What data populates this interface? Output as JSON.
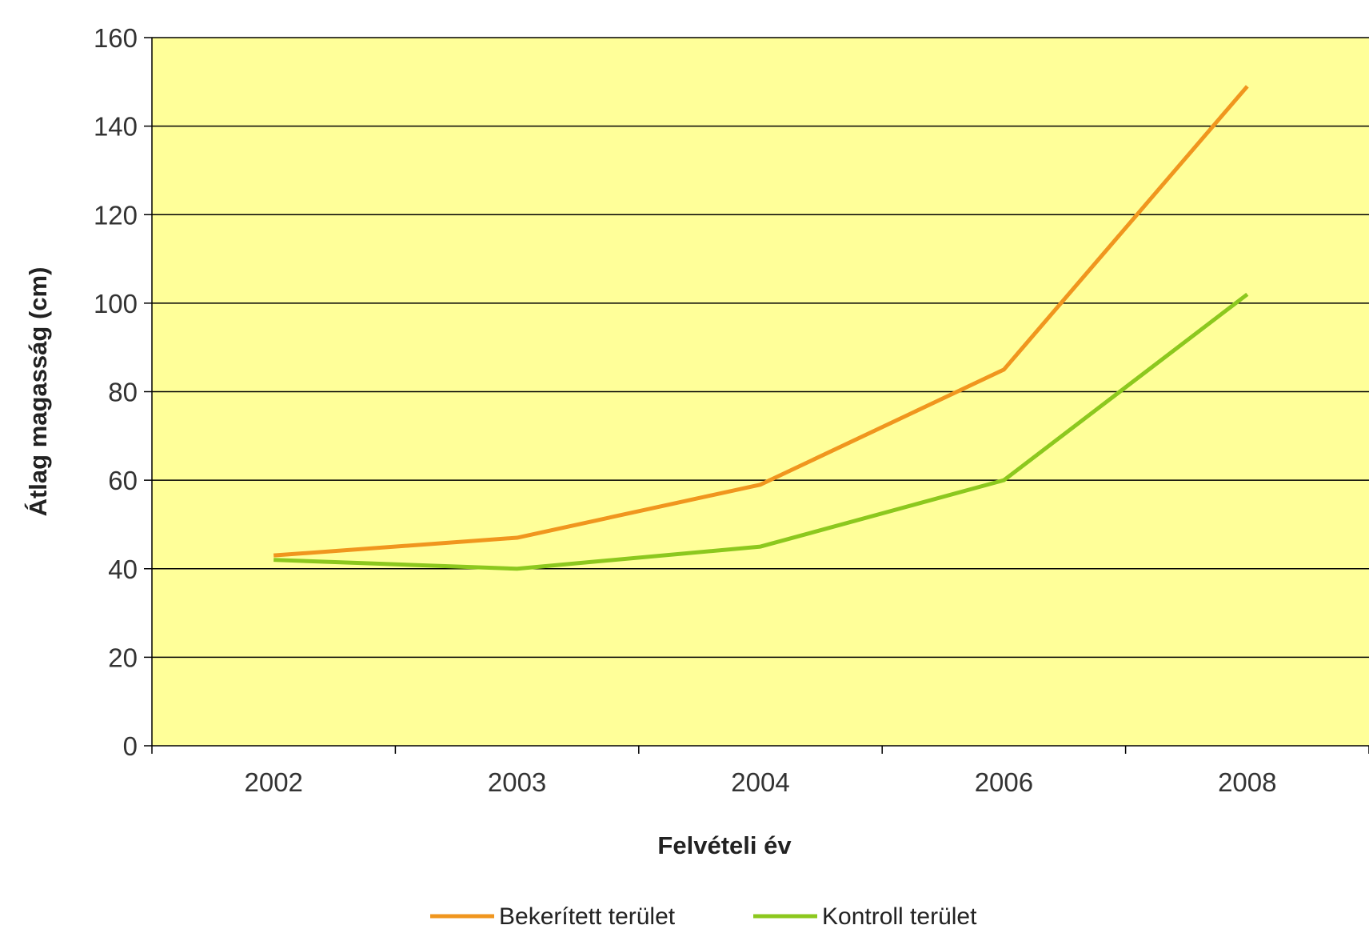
{
  "chart_data": {
    "type": "line",
    "title": "",
    "xlabel": "Felvételi év",
    "ylabel": "Átlag magasság (cm)",
    "categories": [
      "2002",
      "2003",
      "2004",
      "2006",
      "2008"
    ],
    "ylim": [
      0,
      160
    ],
    "yticks": [
      0,
      20,
      40,
      60,
      80,
      100,
      120,
      140,
      160
    ],
    "grid": true,
    "legend_position": "bottom",
    "plot_background": "#FFFF99",
    "series": [
      {
        "name": "Bekerített terület",
        "color": "#F0961E",
        "values": [
          43,
          47,
          59,
          85,
          149
        ]
      },
      {
        "name": "Kontroll terület",
        "color": "#8CC81E",
        "values": [
          42,
          40,
          45,
          60,
          102
        ]
      }
    ]
  }
}
